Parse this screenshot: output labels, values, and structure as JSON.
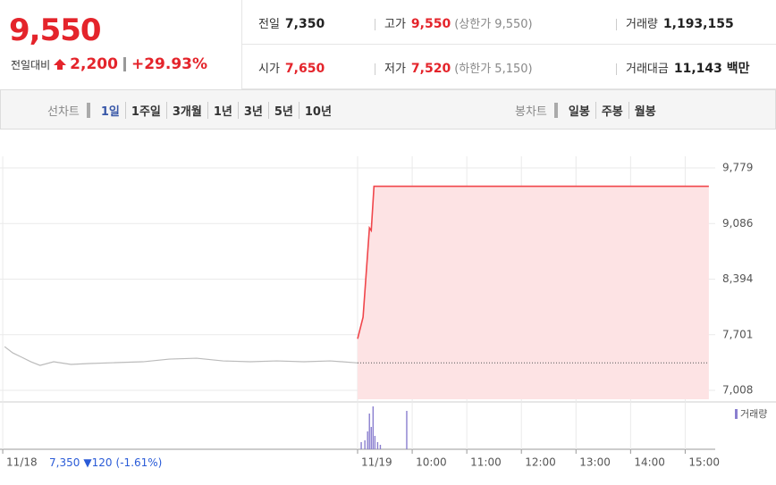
{
  "header": {
    "price": "9,550",
    "change_label": "전일대비",
    "change": "2,200",
    "change_pct": "+29.93%"
  },
  "stats": [
    [
      {
        "label": "전일",
        "value": "7,350",
        "color": "#222222"
      },
      {
        "label": "고가",
        "value": "9,550",
        "note": "(상한가 9,550)",
        "color": "#e4242b"
      },
      {
        "label": "거래량",
        "value": "1,193,155",
        "color": "#222222"
      }
    ],
    [
      {
        "label": "시가",
        "value": "7,650",
        "color": "#e4242b"
      },
      {
        "label": "저가",
        "value": "7,520",
        "note": "(하한가 5,150)",
        "color": "#e4242b"
      },
      {
        "label": "거래대금",
        "value": "11,143 백만",
        "color": "#222222"
      }
    ]
  ],
  "toolbar": {
    "line_label": "선차트",
    "line_tabs": [
      "1일",
      "1주일",
      "3개월",
      "1년",
      "3년",
      "5년",
      "10년"
    ],
    "active": "1일",
    "candle_label": "봉차트",
    "candle_tabs": [
      "일봉",
      "주봉",
      "월봉"
    ]
  },
  "chart_data": {
    "type": "line",
    "xlim": [
      -393,
      393
    ],
    "xticks": [
      {
        "value": -390,
        "label": "11/18"
      },
      {
        "value": 0,
        "label": "11/19"
      },
      {
        "value": 60,
        "label": "10:00"
      },
      {
        "value": 120,
        "label": "11:00"
      },
      {
        "value": 180,
        "label": "12:00"
      },
      {
        "value": 240,
        "label": "13:00"
      },
      {
        "value": 300,
        "label": "14:00"
      },
      {
        "value": 360,
        "label": "15:00"
      }
    ],
    "prev_day_note": {
      "close": "7,350",
      "change": "▼120",
      "pct": "(-1.61%)"
    },
    "ylim": [
      6897,
      9924
    ],
    "yticks": [
      {
        "value": 9779,
        "label": "9,779"
      },
      {
        "value": 9086,
        "label": "9,086"
      },
      {
        "value": 8394,
        "label": "8,394"
      },
      {
        "value": 7701,
        "label": "7,701"
      },
      {
        "value": 7008,
        "label": "7,008"
      }
    ],
    "grid": true,
    "baseline": 7350,
    "baseline_color": "#555555",
    "series": [
      {
        "color": "#bbbbbb",
        "x": [
          -388,
          -379,
          -369,
          -359,
          -349,
          -334,
          -315,
          -295,
          -266,
          -236,
          -207,
          -177,
          -148,
          -118,
          -89,
          -59,
          -30,
          0
        ],
        "values": [
          7553,
          7475,
          7420,
          7364,
          7319,
          7364,
          7331,
          7342,
          7353,
          7364,
          7397,
          7408,
          7375,
          7364,
          7375,
          7364,
          7375,
          7350
        ]
      },
      {
        "color": "#f0464b",
        "fill": "#fde3e4",
        "x": [
          0,
          6,
          13,
          15,
          18,
          386
        ],
        "values": [
          7650,
          7920,
          9032,
          9000,
          9550,
          9550
        ]
      }
    ],
    "volume": {
      "name": "거래량",
      "color": "#8a7fcf",
      "ylim": [
        0,
        50
      ],
      "x": [
        4,
        8,
        11,
        13,
        15,
        17,
        19,
        22,
        25,
        54
      ],
      "values": [
        8,
        10,
        20,
        40,
        25,
        48,
        15,
        8,
        5,
        43
      ]
    }
  }
}
